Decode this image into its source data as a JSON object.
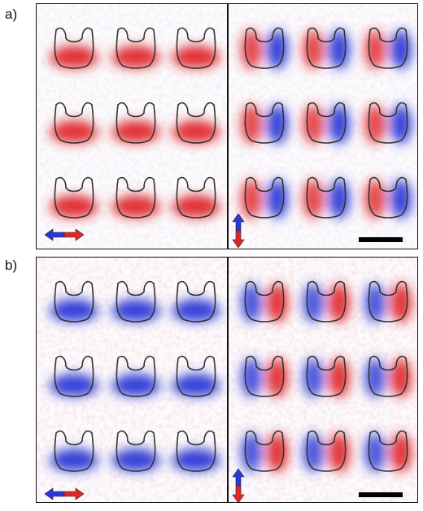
{
  "figure": {
    "panels": [
      {
        "label": "a)",
        "left_polarization": "horizontal",
        "right_polarization": "vertical",
        "left_pattern": "red-bottom",
        "right_pattern": "red-left-blue-right",
        "background_tint": "neutral",
        "scale_bar": true
      },
      {
        "label": "b)",
        "left_polarization": "horizontal",
        "right_polarization": "vertical",
        "left_pattern": "blue-bottom",
        "right_pattern": "blue-left-red-right",
        "background_tint": "red",
        "scale_bar": true
      }
    ],
    "grid": {
      "rows": 3,
      "cols": 3
    },
    "colors": {
      "positive": "#e0262a",
      "negative": "#2b38d6",
      "outline": "#333333",
      "frame": "#111111"
    }
  }
}
